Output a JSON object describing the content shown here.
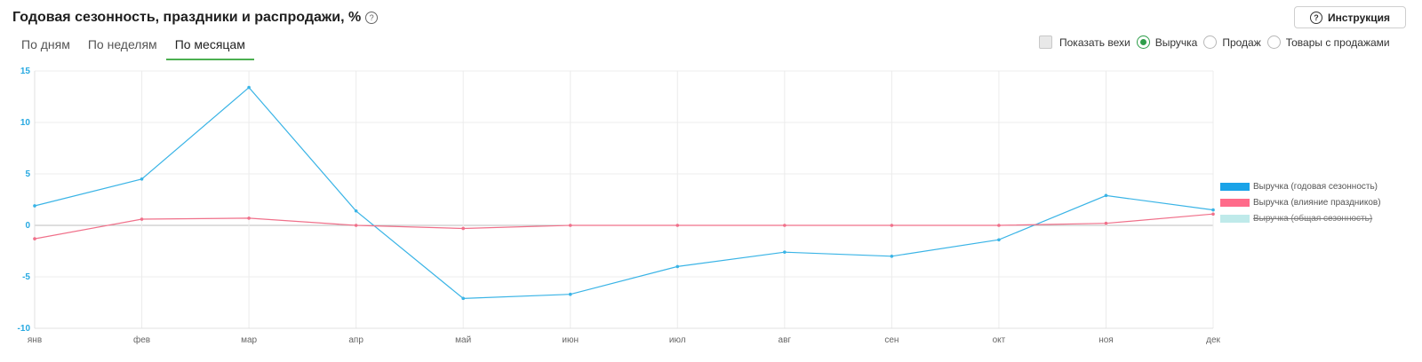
{
  "header": {
    "title": "Годовая сезонность, праздники и распродажи, %",
    "help_glyph": "?",
    "instruction_label": "Инструкция"
  },
  "tabs": [
    {
      "label": "По дням",
      "active": false
    },
    {
      "label": "По неделям",
      "active": false
    },
    {
      "label": "По месяцам",
      "active": true
    }
  ],
  "controls": {
    "show_milestones_label": "Показать вехи",
    "metric_options": [
      {
        "label": "Выручка",
        "selected": true
      },
      {
        "label": "Продаж",
        "selected": false
      },
      {
        "label": "Товары с продажами",
        "selected": false
      }
    ]
  },
  "colors": {
    "accent": "#2e9e4a",
    "series_seasonality": "#3ab4e6",
    "series_holidays": "#f0708a",
    "series_total": "#bfeaea"
  },
  "legend": [
    {
      "label": "Выручка (годовая сезонность)",
      "color": "#1aa3e8",
      "hidden": false
    },
    {
      "label": "Выручка (влияние праздников)",
      "color": "#ff6b8a",
      "hidden": false
    },
    {
      "label": "Выручка (общая сезонность)",
      "color": "#bfeaea",
      "hidden": true
    }
  ],
  "chart_data": {
    "type": "line",
    "categories": [
      "янв",
      "фев",
      "мар",
      "апр",
      "май",
      "июн",
      "июл",
      "авг",
      "сен",
      "окт",
      "ноя",
      "дек"
    ],
    "series": [
      {
        "name": "Выручка (годовая сезонность)",
        "values": [
          1.9,
          4.5,
          13.4,
          1.4,
          -7.1,
          -6.7,
          -4.0,
          -2.6,
          -3.0,
          -1.4,
          2.9,
          1.5
        ]
      },
      {
        "name": "Выручка (влияние праздников)",
        "values": [
          -1.3,
          0.6,
          0.7,
          0.0,
          -0.3,
          0.0,
          0.0,
          0.0,
          0.0,
          0.0,
          0.2,
          1.1
        ]
      }
    ],
    "ylim": [
      -10,
      15
    ],
    "yticks": [
      15,
      10,
      5,
      0,
      -5,
      -10
    ],
    "grid": true,
    "legend_position": "right"
  }
}
